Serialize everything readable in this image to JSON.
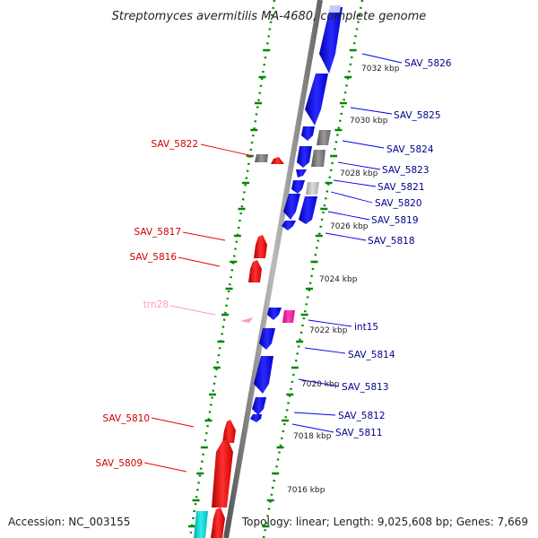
{
  "title": "Streptomyces avermitilis MA-4680, complete genome",
  "footer": {
    "accession": "Accession: NC_003155",
    "info": "Topology: linear; Length: 9,025,608 bp; Genes: 7,669"
  },
  "colors": {
    "forward_cds": "#0000ee",
    "reverse_cds": "#ee0000",
    "unknown": "#777777",
    "trna": "#ff99cc",
    "misc": "#ff33aa",
    "backbone": "#808080",
    "ticks": "#008800",
    "forward_label": "#00008b",
    "reverse_label": "#cc0000",
    "trna_label": "#ff99cc"
  },
  "kbp_ticks": [
    "7032 kbp",
    "7030 kbp",
    "7028 kbp",
    "7026 kbp",
    "7024 kbp",
    "7022 kbp",
    "7020 kbp",
    "7018 kbp",
    "7016 kbp"
  ],
  "genes_right": [
    {
      "label": "SAV_5826"
    },
    {
      "label": "SAV_5825"
    },
    {
      "label": "SAV_5824"
    },
    {
      "label": "SAV_5823"
    },
    {
      "label": "SAV_5821"
    },
    {
      "label": "SAV_5820"
    },
    {
      "label": "SAV_5819"
    },
    {
      "label": "SAV_5818"
    },
    {
      "label": "int15"
    },
    {
      "label": "SAV_5814"
    },
    {
      "label": "SAV_5813"
    },
    {
      "label": "SAV_5812"
    },
    {
      "label": "SAV_5811"
    }
  ],
  "genes_left": [
    {
      "label": "SAV_5822"
    },
    {
      "label": "SAV_5817"
    },
    {
      "label": "SAV_5816"
    },
    {
      "label": "trn28"
    },
    {
      "label": "SAV_5810"
    },
    {
      "label": "SAV_5809"
    }
  ]
}
